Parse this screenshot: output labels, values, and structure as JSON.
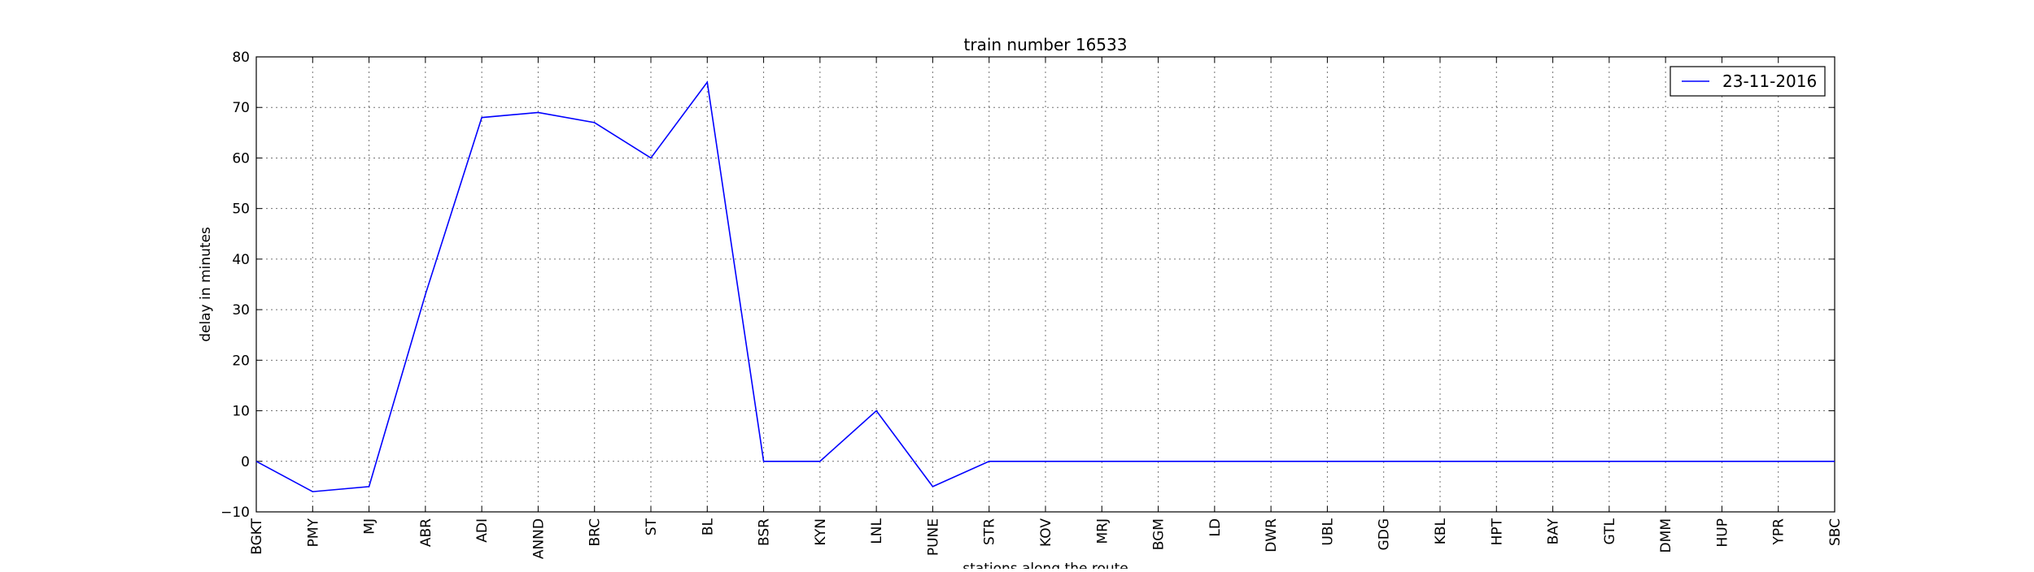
{
  "chart_data": {
    "type": "line",
    "title": "train number 16533",
    "xlabel": "stations along the route",
    "ylabel": "delay in minutes",
    "ylim": [
      -10,
      80
    ],
    "yticks": [
      -10,
      0,
      10,
      20,
      30,
      40,
      50,
      60,
      70,
      80
    ],
    "grid": true,
    "legend_position": "top-right",
    "categories": [
      "BGKT",
      "PMY",
      "MJ",
      "ABR",
      "ADI",
      "ANND",
      "BRC",
      "ST",
      "BL",
      "BSR",
      "KYN",
      "LNL",
      "PUNE",
      "STR",
      "KOV",
      "MRJ",
      "BGM",
      "LD",
      "DWR",
      "UBL",
      "GDG",
      "KBL",
      "HPT",
      "BAY",
      "GTL",
      "DMM",
      "HUP",
      "YPR",
      "SBC"
    ],
    "series": [
      {
        "name": "23-11-2016",
        "color": "#0000ff",
        "values": [
          0,
          -6,
          -5,
          33,
          68,
          69,
          67,
          60,
          75,
          0,
          0,
          10,
          -5,
          0,
          0,
          0,
          0,
          0,
          0,
          0,
          0,
          0,
          0,
          0,
          0,
          0,
          0,
          0,
          0
        ]
      }
    ]
  }
}
